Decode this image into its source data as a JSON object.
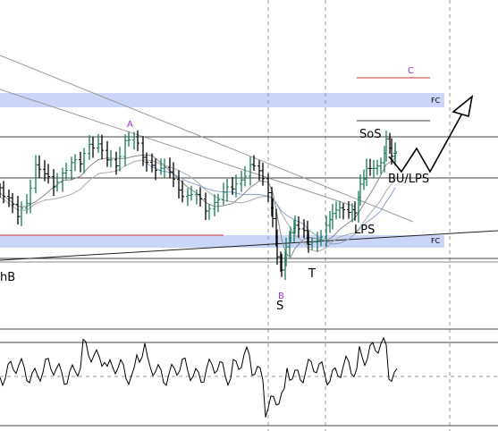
{
  "chart_data": {
    "type": "candlestick",
    "annotations": {
      "A": "A",
      "B": "B",
      "C": "C",
      "S": "S",
      "T": "T",
      "SoS": "SoS",
      "LPS": "LPS",
      "BU_LPS": "BU/LPS",
      "hB": "hB",
      "FC_upper": "FC",
      "FC_lower": "FC"
    },
    "colors": {
      "zone": "#c9d6f7",
      "up_bar": "#1a7a5a",
      "down_bar": "#000000",
      "ma": "#888888",
      "ma_blue": "#8aa0c8",
      "red_line": "#c83232",
      "purple_label": "#9b30c8"
    },
    "indicator": {
      "type": "oscillator line"
    }
  }
}
